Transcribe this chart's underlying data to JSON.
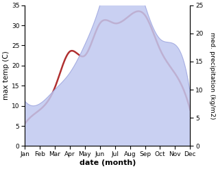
{
  "months": [
    "Jan",
    "Feb",
    "Mar",
    "Apr",
    "May",
    "Jun",
    "Jul",
    "Aug",
    "Sep",
    "Oct",
    "Nov",
    "Dec"
  ],
  "temperature": [
    5.5,
    9.0,
    14.5,
    23.5,
    22.5,
    30.5,
    30.5,
    32.5,
    32.5,
    24.0,
    18.0,
    9.0
  ],
  "precipitation": [
    8.0,
    7.5,
    10.0,
    13.0,
    18.0,
    25.0,
    33.5,
    33.0,
    25.0,
    19.0,
    18.0,
    9.5
  ],
  "temp_color": "#b03030",
  "precip_fill_color": "#c0c8f0",
  "precip_edge_color": "#a0a8e0",
  "background_color": "#ffffff",
  "temp_linewidth": 1.8,
  "xlabel": "date (month)",
  "ylabel_left": "max temp (C)",
  "ylabel_right": "med. precipitation (kg/m2)",
  "ylim_left": [
    0,
    35
  ],
  "ylim_right": [
    0,
    25
  ],
  "yticks_left": [
    0,
    5,
    10,
    15,
    20,
    25,
    30,
    35
  ],
  "yticks_right": [
    0,
    5,
    10,
    15,
    20,
    25
  ],
  "tick_fontsize": 6.5,
  "xlabel_fontsize": 8,
  "ylabel_left_fontsize": 7.5,
  "ylabel_right_fontsize": 6.8
}
